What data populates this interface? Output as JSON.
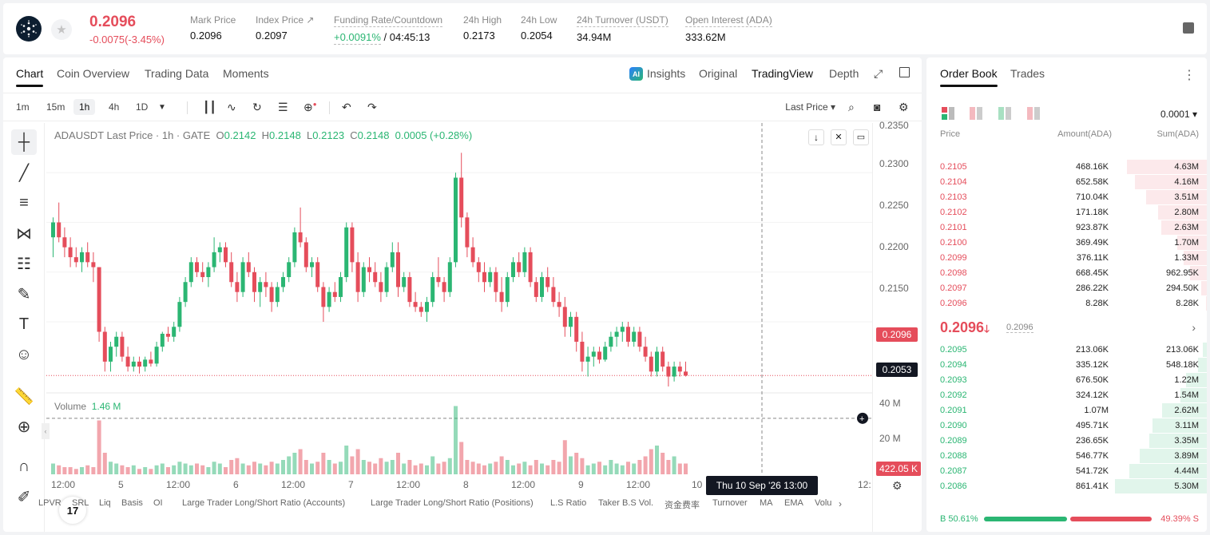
{
  "header": {
    "price": "0.2096",
    "change": "-0.0075(-3.45%)",
    "stats": [
      {
        "label": "Mark Price",
        "value": "0.2096"
      },
      {
        "label": "Index Price ↗",
        "value": "0.2097"
      },
      {
        "label": "Funding Rate/Countdown",
        "value_rate": "+0.0091%",
        "value_cd": " / 04:45:13"
      },
      {
        "label": "24h High",
        "value": "0.2173"
      },
      {
        "label": "24h Low",
        "value": "0.2054"
      },
      {
        "label": "24h Turnover (USDT)",
        "value": "34.94M"
      },
      {
        "label": "Open Interest (ADA)",
        "value": "333.62M"
      }
    ]
  },
  "chart_tabs": [
    "Chart",
    "Coin Overview",
    "Trading Data",
    "Moments"
  ],
  "view_tabs": {
    "ai": "AI",
    "insights": "Insights",
    "original": "Original",
    "tradingview": "TradingView",
    "depth": "Depth"
  },
  "timeframes": [
    "1m",
    "15m",
    "1h",
    "4h",
    "1D"
  ],
  "last_price_select": "Last Price",
  "legend": {
    "symbol": "ADAUSDT Last Price · 1h · GATE",
    "o_label": "O",
    "o": "0.2142",
    "h_label": "H",
    "h": "0.2148",
    "l_label": "L",
    "l": "0.2123",
    "c_label": "C",
    "c": "0.2148",
    "chg": "0.0005 (+0.28%)"
  },
  "volume_legend": {
    "label": "Volume",
    "value": "1.46 M"
  },
  "price_axis": [
    "0.2350",
    "0.2300",
    "0.2250",
    "0.2200",
    "0.2150"
  ],
  "volume_axis": [
    "40 M",
    "20 M"
  ],
  "tags": {
    "current": "0.2096",
    "cross": "0.2053",
    "volume": "422.05 K"
  },
  "x_labels": [
    "12:00",
    "5",
    "12:00",
    "6",
    "12:00",
    "7",
    "12:00",
    "8",
    "12:00",
    "9",
    "12:00",
    "10",
    "12:"
  ],
  "crosshair_tip": "Thu 10 Sep '26   13:00",
  "tv_logo": "17",
  "indicators": [
    "LPVR",
    "SRL",
    "Liq",
    "Basis",
    "OI",
    "Large Trader Long/Short Ratio (Accounts)",
    "Large Trader Long/Short Ratio (Positions)",
    "L.S Ratio",
    "Taker B.S Vol.",
    "资金费率",
    "Turnover",
    "MA",
    "EMA",
    "Volu"
  ],
  "chart_data": {
    "type": "candlestick",
    "ylim": [
      0.2085,
      0.235
    ],
    "candles": [
      [
        0.2235,
        0.2255,
        0.2215,
        0.225
      ],
      [
        0.225,
        0.227,
        0.223,
        0.2235
      ],
      [
        0.2235,
        0.2245,
        0.2215,
        0.2225
      ],
      [
        0.2225,
        0.2235,
        0.2205,
        0.2215
      ],
      [
        0.2215,
        0.2225,
        0.2205,
        0.221
      ],
      [
        0.221,
        0.2225,
        0.22,
        0.222
      ],
      [
        0.222,
        0.223,
        0.2205,
        0.221
      ],
      [
        0.221,
        0.222,
        0.219,
        0.2205
      ],
      [
        0.2205,
        0.2205,
        0.213,
        0.214
      ],
      [
        0.214,
        0.2145,
        0.21,
        0.211
      ],
      [
        0.211,
        0.213,
        0.21,
        0.2125
      ],
      [
        0.2125,
        0.214,
        0.2115,
        0.2135
      ],
      [
        0.2135,
        0.214,
        0.211,
        0.2115
      ],
      [
        0.2115,
        0.2125,
        0.21,
        0.2105
      ],
      [
        0.2105,
        0.2115,
        0.21,
        0.211
      ],
      [
        0.211,
        0.2115,
        0.2098,
        0.2105
      ],
      [
        0.2105,
        0.2115,
        0.21,
        0.2112
      ],
      [
        0.2112,
        0.212,
        0.2105,
        0.2108
      ],
      [
        0.2108,
        0.213,
        0.2105,
        0.2125
      ],
      [
        0.2125,
        0.214,
        0.212,
        0.2138
      ],
      [
        0.2138,
        0.2145,
        0.213,
        0.2135
      ],
      [
        0.2135,
        0.215,
        0.213,
        0.2145
      ],
      [
        0.2145,
        0.2175,
        0.214,
        0.217
      ],
      [
        0.217,
        0.2195,
        0.2165,
        0.219
      ],
      [
        0.219,
        0.2215,
        0.2185,
        0.221
      ],
      [
        0.221,
        0.2215,
        0.2195,
        0.22
      ],
      [
        0.22,
        0.221,
        0.219,
        0.2195
      ],
      [
        0.2195,
        0.221,
        0.2185,
        0.2205
      ],
      [
        0.2205,
        0.2235,
        0.22,
        0.222
      ],
      [
        0.222,
        0.223,
        0.221,
        0.2225
      ],
      [
        0.2225,
        0.223,
        0.2205,
        0.221
      ],
      [
        0.221,
        0.222,
        0.2185,
        0.219
      ],
      [
        0.219,
        0.22,
        0.217,
        0.218
      ],
      [
        0.218,
        0.2215,
        0.2175,
        0.221
      ],
      [
        0.221,
        0.222,
        0.2195,
        0.22
      ],
      [
        0.22,
        0.2205,
        0.217,
        0.218
      ],
      [
        0.218,
        0.2195,
        0.2165,
        0.219
      ],
      [
        0.219,
        0.22,
        0.2175,
        0.2185
      ],
      [
        0.2185,
        0.219,
        0.216,
        0.217
      ],
      [
        0.217,
        0.219,
        0.2165,
        0.2185
      ],
      [
        0.2185,
        0.22,
        0.218,
        0.2195
      ],
      [
        0.2195,
        0.2215,
        0.219,
        0.221
      ],
      [
        0.221,
        0.2245,
        0.2205,
        0.224
      ],
      [
        0.224,
        0.2265,
        0.2225,
        0.223
      ],
      [
        0.223,
        0.2235,
        0.22,
        0.2205
      ],
      [
        0.2205,
        0.2215,
        0.2195,
        0.221
      ],
      [
        0.221,
        0.2215,
        0.218,
        0.2185
      ],
      [
        0.2185,
        0.219,
        0.215,
        0.2165
      ],
      [
        0.2165,
        0.2185,
        0.216,
        0.218
      ],
      [
        0.218,
        0.219,
        0.217,
        0.2175
      ],
      [
        0.2175,
        0.22,
        0.217,
        0.2195
      ],
      [
        0.2195,
        0.225,
        0.219,
        0.2245
      ],
      [
        0.2245,
        0.225,
        0.22,
        0.221
      ],
      [
        0.221,
        0.222,
        0.217,
        0.218
      ],
      [
        0.218,
        0.221,
        0.2175,
        0.2205
      ],
      [
        0.2205,
        0.2215,
        0.219,
        0.22
      ],
      [
        0.22,
        0.221,
        0.2185,
        0.219
      ],
      [
        0.219,
        0.22,
        0.217,
        0.218
      ],
      [
        0.218,
        0.221,
        0.2175,
        0.2205
      ],
      [
        0.2205,
        0.223,
        0.22,
        0.222
      ],
      [
        0.222,
        0.223,
        0.2175,
        0.2185
      ],
      [
        0.2185,
        0.22,
        0.218,
        0.2195
      ],
      [
        0.2195,
        0.22,
        0.2165,
        0.217
      ],
      [
        0.217,
        0.218,
        0.216,
        0.2165
      ],
      [
        0.2165,
        0.217,
        0.2155,
        0.216
      ],
      [
        0.216,
        0.2175,
        0.215,
        0.217
      ],
      [
        0.217,
        0.22,
        0.2165,
        0.2195
      ],
      [
        0.2195,
        0.2215,
        0.2185,
        0.219
      ],
      [
        0.219,
        0.2195,
        0.217,
        0.218
      ],
      [
        0.218,
        0.2215,
        0.2175,
        0.221
      ],
      [
        0.221,
        0.23,
        0.2205,
        0.2295
      ],
      [
        0.2295,
        0.232,
        0.2245,
        0.2255
      ],
      [
        0.2255,
        0.226,
        0.2215,
        0.2225
      ],
      [
        0.2225,
        0.2235,
        0.2205,
        0.221
      ],
      [
        0.221,
        0.2215,
        0.219,
        0.22
      ],
      [
        0.22,
        0.221,
        0.218,
        0.219
      ],
      [
        0.219,
        0.2205,
        0.2185,
        0.22
      ],
      [
        0.22,
        0.2205,
        0.217,
        0.218
      ],
      [
        0.218,
        0.2195,
        0.216,
        0.217
      ],
      [
        0.217,
        0.22,
        0.2165,
        0.2195
      ],
      [
        0.2195,
        0.2215,
        0.219,
        0.221
      ],
      [
        0.221,
        0.222,
        0.2195,
        0.22
      ],
      [
        0.22,
        0.2225,
        0.2195,
        0.222
      ],
      [
        0.222,
        0.2225,
        0.2185,
        0.219
      ],
      [
        0.219,
        0.2195,
        0.217,
        0.2175
      ],
      [
        0.2175,
        0.22,
        0.217,
        0.2195
      ],
      [
        0.2195,
        0.2205,
        0.218,
        0.2185
      ],
      [
        0.2185,
        0.2195,
        0.2165,
        0.217
      ],
      [
        0.217,
        0.218,
        0.2155,
        0.2165
      ],
      [
        0.2165,
        0.2175,
        0.2135,
        0.2145
      ],
      [
        0.2145,
        0.216,
        0.2135,
        0.2155
      ],
      [
        0.2155,
        0.216,
        0.212,
        0.213
      ],
      [
        0.213,
        0.214,
        0.21,
        0.211
      ],
      [
        0.211,
        0.2125,
        0.2095,
        0.2115
      ],
      [
        0.2115,
        0.2125,
        0.2105,
        0.212
      ],
      [
        0.212,
        0.2125,
        0.2108,
        0.2112
      ],
      [
        0.2112,
        0.213,
        0.211,
        0.2125
      ],
      [
        0.2125,
        0.214,
        0.212,
        0.2135
      ],
      [
        0.2135,
        0.2145,
        0.2125,
        0.214
      ],
      [
        0.214,
        0.215,
        0.213,
        0.2145
      ],
      [
        0.2145,
        0.215,
        0.2125,
        0.213
      ],
      [
        0.213,
        0.2145,
        0.2125,
        0.214
      ],
      [
        0.214,
        0.2145,
        0.212,
        0.2125
      ],
      [
        0.2125,
        0.2135,
        0.211,
        0.2115
      ],
      [
        0.2115,
        0.212,
        0.2095,
        0.21
      ],
      [
        0.21,
        0.2125,
        0.2095,
        0.212
      ],
      [
        0.212,
        0.2125,
        0.21,
        0.2105
      ],
      [
        0.2105,
        0.211,
        0.2085,
        0.2095
      ],
      [
        0.2095,
        0.211,
        0.209,
        0.2105
      ],
      [
        0.2105,
        0.211,
        0.2095,
        0.21
      ],
      [
        0.21,
        0.211,
        0.2095,
        0.2096
      ]
    ],
    "volume": [
      6,
      5,
      4,
      4,
      3,
      4,
      5,
      4,
      30,
      12,
      7,
      6,
      5,
      4,
      5,
      3,
      4,
      3,
      5,
      6,
      4,
      5,
      7,
      6,
      5,
      6,
      5,
      4,
      7,
      6,
      4,
      8,
      9,
      6,
      5,
      7,
      6,
      5,
      7,
      6,
      8,
      10,
      12,
      14,
      8,
      6,
      7,
      12,
      8,
      6,
      7,
      16,
      10,
      14,
      8,
      7,
      6,
      9,
      7,
      8,
      12,
      6,
      8,
      5,
      6,
      5,
      10,
      6,
      7,
      9,
      38,
      18,
      8,
      7,
      6,
      5,
      6,
      7,
      10,
      8,
      5,
      6,
      7,
      5,
      8,
      6,
      5,
      8,
      7,
      19,
      10,
      12,
      9,
      5,
      6,
      7,
      5,
      8,
      6,
      5,
      7,
      6,
      8,
      10,
      14,
      16,
      12,
      8,
      10,
      6,
      6
    ]
  },
  "order_book": {
    "tabs": [
      "Order Book",
      "Trades"
    ],
    "precision": "0.0001",
    "headers": {
      "price": "Price",
      "amount": "Amount(ADA)",
      "sum": "Sum(ADA)"
    },
    "asks": [
      {
        "p": "0.2105",
        "a": "468.16K",
        "s": "4.63M",
        "d": 0.87
      },
      {
        "p": "0.2104",
        "a": "652.58K",
        "s": "4.16M",
        "d": 0.78
      },
      {
        "p": "0.2103",
        "a": "710.04K",
        "s": "3.51M",
        "d": 0.66
      },
      {
        "p": "0.2102",
        "a": "171.18K",
        "s": "2.80M",
        "d": 0.53
      },
      {
        "p": "0.2101",
        "a": "923.87K",
        "s": "2.63M",
        "d": 0.5
      },
      {
        "p": "0.2100",
        "a": "369.49K",
        "s": "1.70M",
        "d": 0.32
      },
      {
        "p": "0.2099",
        "a": "376.11K",
        "s": "1.33M",
        "d": 0.25
      },
      {
        "p": "0.2098",
        "a": "668.45K",
        "s": "962.95K",
        "d": 0.18
      },
      {
        "p": "0.2097",
        "a": "286.22K",
        "s": "294.50K",
        "d": 0.06
      },
      {
        "p": "0.2096",
        "a": "8.28K",
        "s": "8.28K",
        "d": 0.01
      }
    ],
    "mid": {
      "price": "0.2096",
      "arrow": "🡓",
      "mark": "0.2096"
    },
    "bids": [
      {
        "p": "0.2095",
        "a": "213.06K",
        "s": "213.06K",
        "d": 0.04
      },
      {
        "p": "0.2094",
        "a": "335.12K",
        "s": "548.18K",
        "d": 0.1
      },
      {
        "p": "0.2093",
        "a": "676.50K",
        "s": "1.22M",
        "d": 0.23
      },
      {
        "p": "0.2092",
        "a": "324.12K",
        "s": "1.54M",
        "d": 0.29
      },
      {
        "p": "0.2091",
        "a": "1.07M",
        "s": "2.62M",
        "d": 0.49
      },
      {
        "p": "0.2090",
        "a": "495.71K",
        "s": "3.11M",
        "d": 0.59
      },
      {
        "p": "0.2089",
        "a": "236.65K",
        "s": "3.35M",
        "d": 0.63
      },
      {
        "p": "0.2088",
        "a": "546.77K",
        "s": "3.89M",
        "d": 0.73
      },
      {
        "p": "0.2087",
        "a": "541.72K",
        "s": "4.44M",
        "d": 0.84
      },
      {
        "p": "0.2086",
        "a": "861.41K",
        "s": "5.30M",
        "d": 1.0
      }
    ],
    "ratio": {
      "buy": "B 50.61%",
      "sell": "49.39% S",
      "buy_frac": 0.5061
    }
  },
  "colors": {
    "up": "#2bb673",
    "down": "#e54d5b"
  }
}
